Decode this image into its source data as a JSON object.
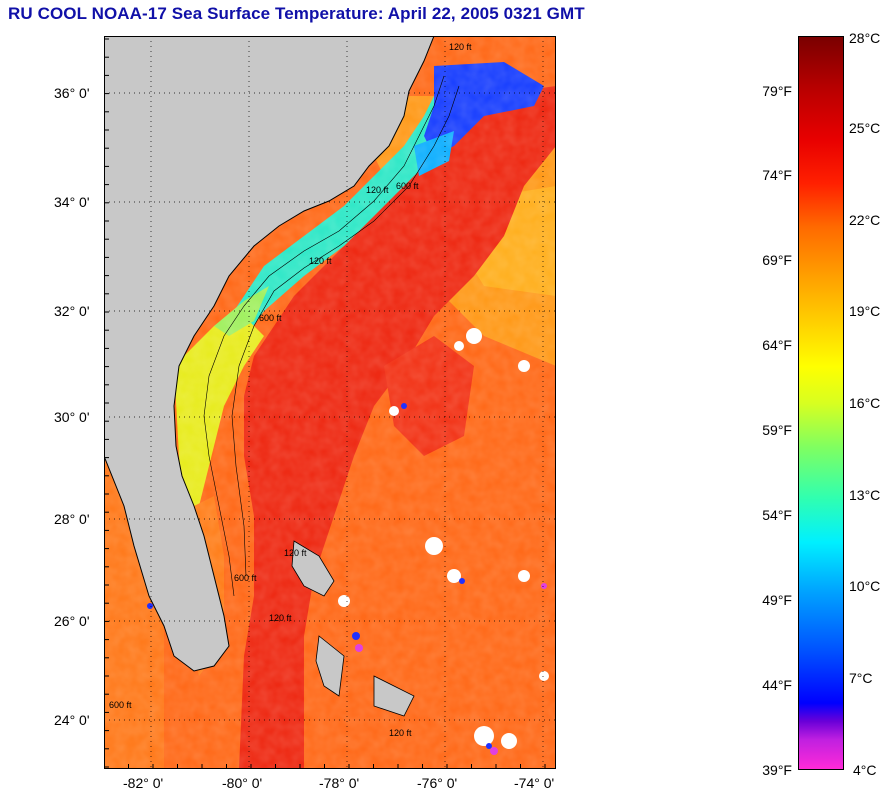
{
  "title": "RU COOL  NOAA-17  Sea Surface Temperature:  April 22, 2005 0321 GMT",
  "map": {
    "lat_labels": [
      "36° 0'",
      "34° 0'",
      "32° 0'",
      "30° 0'",
      "28° 0'",
      "26° 0'",
      "24° 0'"
    ],
    "lon_labels": [
      "-82° 0'",
      "-80° 0'",
      "-78° 0'",
      "-76° 0'",
      "-74° 0'"
    ],
    "contour_labels": [
      "120 ft",
      "120 ft",
      "600 ft",
      "120 ft",
      "600 ft",
      "120 ft",
      "120 ft",
      "600 ft",
      "120 ft",
      "600 ft"
    ],
    "colors": {
      "land": "#c8c8c8",
      "gulf_stream": "#ee2a14",
      "warm": "#ff6a1a",
      "shelf_cool": "#30e8c8",
      "cold": "#1030ff",
      "cloud": "#ffffff"
    }
  },
  "colorbar": {
    "celsius": [
      "28°C",
      "25°C",
      "22°C",
      "19°C",
      "16°C",
      "13°C",
      "10°C",
      "7°C",
      "4°C"
    ],
    "fahrenheit": [
      "79°F",
      "74°F",
      "69°F",
      "64°F",
      "59°F",
      "54°F",
      "49°F",
      "44°F",
      "39°F"
    ]
  }
}
